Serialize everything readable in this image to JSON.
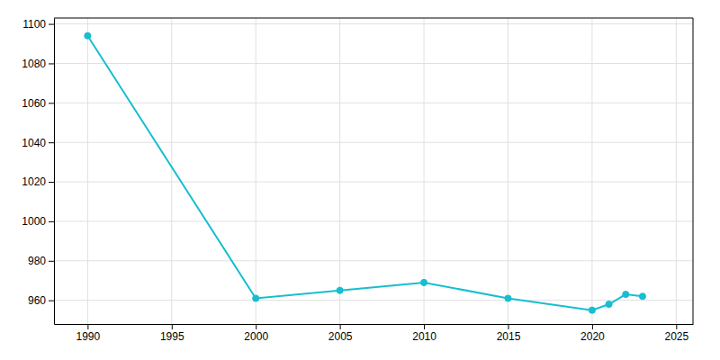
{
  "chart_data": {
    "type": "line",
    "x": [
      1990,
      2000,
      2005,
      2010,
      2015,
      2020,
      2021,
      2022,
      2023
    ],
    "values": [
      1094,
      961,
      965,
      969,
      961,
      955,
      958,
      963,
      962
    ],
    "color": "#17becf",
    "marker": "circle",
    "xlim": [
      1988,
      2026
    ],
    "ylim": [
      948,
      1103
    ],
    "xticks": [
      1990,
      1995,
      2000,
      2005,
      2010,
      2015,
      2020,
      2025
    ],
    "yticks": [
      960,
      980,
      1000,
      1020,
      1040,
      1060,
      1080,
      1100
    ],
    "grid": true
  }
}
